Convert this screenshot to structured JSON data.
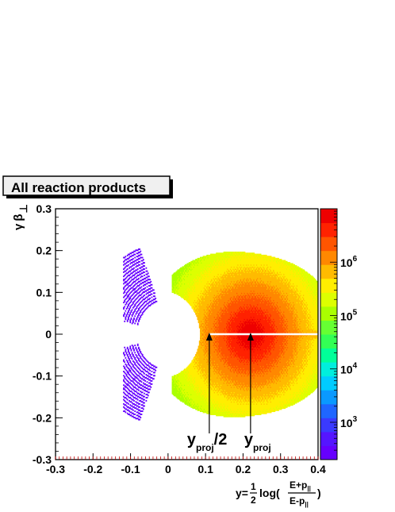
{
  "chart_data": {
    "type": "heatmap",
    "title": "All reaction products",
    "xlabel": {
      "prefix": "y=",
      "frac_num": "1",
      "frac_den": "2",
      "func": "log(",
      "num": "E+p",
      "num_sub": "||",
      "den": "E-p",
      "den_sub": "||",
      "suffix": ")"
    },
    "ylabel": {
      "gamma": "γ",
      "beta": "β",
      "perp": "⊥"
    },
    "xlim": [
      -0.3,
      0.4
    ],
    "ylim": [
      -0.3,
      0.3
    ],
    "x_ticks": [
      {
        "value": -0.3,
        "label": "-0.3"
      },
      {
        "value": -0.2,
        "label": "-0.2"
      },
      {
        "value": -0.1,
        "label": "-0.1"
      },
      {
        "value": 0.0,
        "label": "0"
      },
      {
        "value": 0.1,
        "label": "0.1"
      },
      {
        "value": 0.2,
        "label": "0.2"
      },
      {
        "value": 0.3,
        "label": "0.3"
      },
      {
        "value": 0.4,
        "label": "0.4"
      }
    ],
    "y_ticks": [
      {
        "value": -0.3,
        "label": "-0.3"
      },
      {
        "value": -0.2,
        "label": "-0.2"
      },
      {
        "value": -0.1,
        "label": "-0.1"
      },
      {
        "value": 0.0,
        "label": "0"
      },
      {
        "value": 0.1,
        "label": "0.1"
      },
      {
        "value": 0.2,
        "label": "0.2"
      },
      {
        "value": 0.3,
        "label": "0.3"
      }
    ],
    "z_scale": "log",
    "zlim": [
      200,
      10000000
    ],
    "z_ticks": [
      {
        "value": 1000,
        "base": "10",
        "exp": "3"
      },
      {
        "value": 10000,
        "base": "10",
        "exp": "4"
      },
      {
        "value": 100000,
        "base": "10",
        "exp": "5"
      },
      {
        "value": 1000000,
        "base": "10",
        "exp": "6"
      }
    ],
    "colors": [
      "#6600ff",
      "#5515ff",
      "#3a3aff",
      "#1f66ff",
      "#0a99ff",
      "#00ccff",
      "#00eedd",
      "#00ff99",
      "#33ff55",
      "#66ff33",
      "#aaff00",
      "#ddff00",
      "#ffee00",
      "#ffbb00",
      "#ff8800",
      "#ff5500",
      "#ff2200",
      "#ee0000"
    ],
    "peak": {
      "x": 0.22,
      "y": 0.0,
      "value": 9000000
    },
    "annotations": [
      {
        "label": "y",
        "sub": "proj",
        "tail": "/2",
        "x": 0.11
      },
      {
        "label": "y",
        "sub": "proj",
        "tail": "",
        "x": 0.22
      }
    ]
  }
}
